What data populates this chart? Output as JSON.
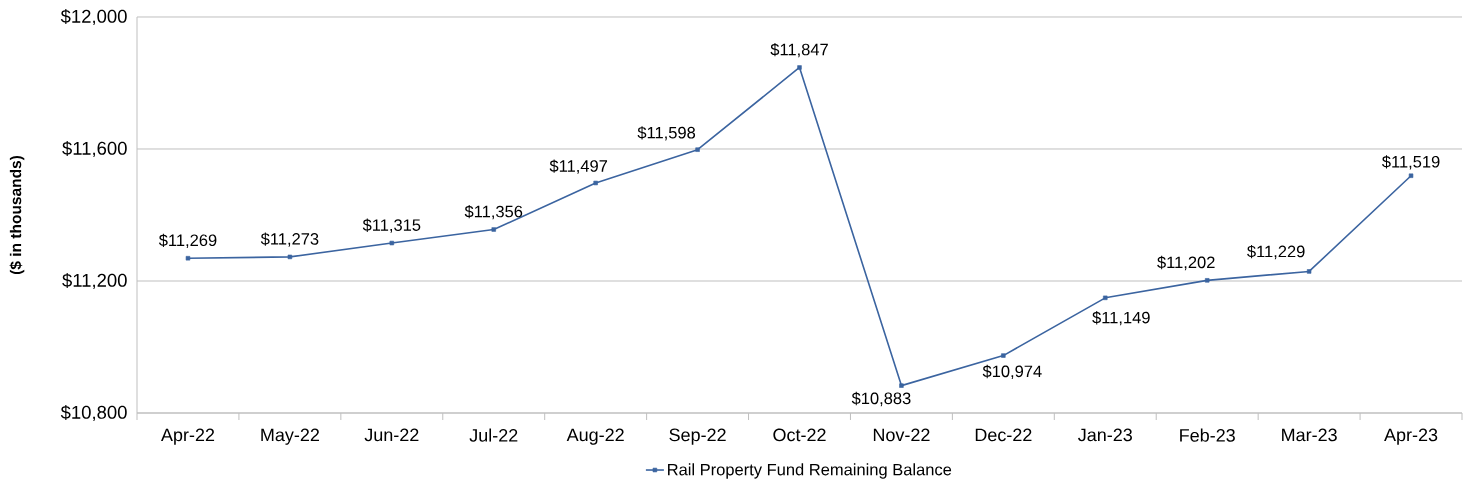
{
  "chart_data": {
    "type": "line",
    "ylabel": "($ in thousands)",
    "categories": [
      "Apr-22",
      "May-22",
      "Jun-22",
      "Jul-22",
      "Aug-22",
      "Sep-22",
      "Oct-22",
      "Nov-22",
      "Dec-22",
      "Jan-23",
      "Feb-23",
      "Mar-23",
      "Apr-23"
    ],
    "series": [
      {
        "name": "Rail Property Fund Remaining Balance",
        "color": "#3b64a0",
        "values": [
          11269,
          11273,
          11315,
          11356,
          11497,
          11598,
          11847,
          10883,
          10974,
          11149,
          11202,
          11229,
          11519
        ],
        "value_labels": [
          "$11,269",
          "$11,273",
          "$11,315",
          "$11,356",
          "$11,497",
          "$11,598",
          "$11,847",
          "$10,883",
          "$10,974",
          "$11,149",
          "$11,202",
          "$11,229",
          "$11,519"
        ]
      }
    ],
    "ylim": [
      10800,
      12000
    ],
    "yticks": [
      {
        "value": 10800,
        "label": "$10,800"
      },
      {
        "value": 11200,
        "label": "$11,200"
      },
      {
        "value": 11600,
        "label": "$11,600"
      },
      {
        "value": 12000,
        "label": "$12,000"
      }
    ],
    "grid": "y",
    "legend": "bottom",
    "marker": "square",
    "line_style": "solid"
  }
}
